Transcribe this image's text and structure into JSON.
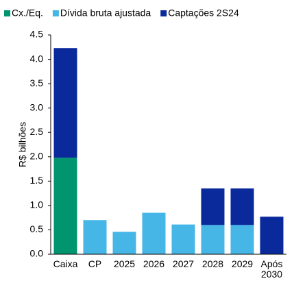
{
  "chart_data": {
    "type": "bar",
    "stacked": true,
    "ylabel": "R$ bilhões",
    "categories": [
      "Caixa",
      "CP",
      "2025",
      "2026",
      "2027",
      "2028",
      "2029",
      "Após 2030"
    ],
    "series": [
      {
        "name": "Cx./Eq.",
        "color": "#00946f",
        "values": [
          1.98,
          null,
          null,
          null,
          null,
          null,
          null,
          null
        ]
      },
      {
        "name": "Dívida bruta ajustada",
        "color": "#45b6e6",
        "values": [
          null,
          0.7,
          0.46,
          0.85,
          0.61,
          0.6,
          0.6,
          null
        ]
      },
      {
        "name": "Captações 2S24",
        "color": "#0a2a9c",
        "values": [
          2.25,
          null,
          null,
          null,
          null,
          0.75,
          0.75,
          0.77
        ]
      }
    ],
    "ylim": [
      0,
      4.5
    ],
    "yticks": [
      {
        "value": 0,
        "label": "0.0"
      },
      {
        "value": 0.5,
        "label": "0.5"
      },
      {
        "value": 1,
        "label": "1.0"
      },
      {
        "value": 1.5,
        "label": "1.5"
      },
      {
        "value": 2,
        "label": "2.0"
      },
      {
        "value": 2.5,
        "label": "2.5"
      },
      {
        "value": 3,
        "label": "3.0"
      },
      {
        "value": 3.5,
        "label": "3.5"
      },
      {
        "value": 4,
        "label": "4.0"
      },
      {
        "value": 4.5,
        "label": "4.5"
      }
    ],
    "legend": "top"
  }
}
